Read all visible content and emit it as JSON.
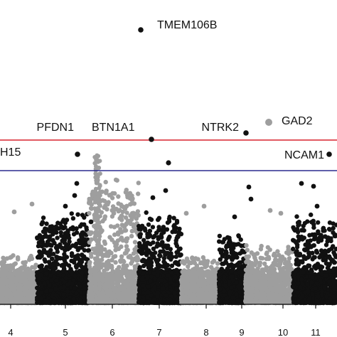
{
  "chart_data": {
    "type": "scatter",
    "title": "",
    "xlabel": "",
    "ylabel": "",
    "x_ticks": [
      "4",
      "5",
      "6",
      "7",
      "8",
      "9",
      "10",
      "11"
    ],
    "threshold_lines": [
      {
        "name": "genome-wide significance",
        "color": "#d9232e"
      },
      {
        "name": "suggestive significance",
        "color": "#2b2b8f"
      }
    ],
    "chromosome_colors": {
      "odd": "#111111",
      "even": "#9e9e9e"
    },
    "annotated_genes": [
      {
        "label": "TMEM106B",
        "chromosome": 7,
        "color": "#111111"
      },
      {
        "label": "PFDN1",
        "chromosome": 5,
        "color": "#111111"
      },
      {
        "label": "BTN1A1",
        "chromosome": 6,
        "color": "#111111"
      },
      {
        "label": "NTRK2",
        "chromosome": 9,
        "color": "#111111"
      },
      {
        "label": "GAD2",
        "chromosome": 10,
        "color": "#9e9e9e"
      },
      {
        "label": "NCAM1",
        "chromosome": 11,
        "color": "#111111"
      },
      {
        "label": "H15",
        "chromosome": 4,
        "color": "#111111"
      }
    ]
  }
}
